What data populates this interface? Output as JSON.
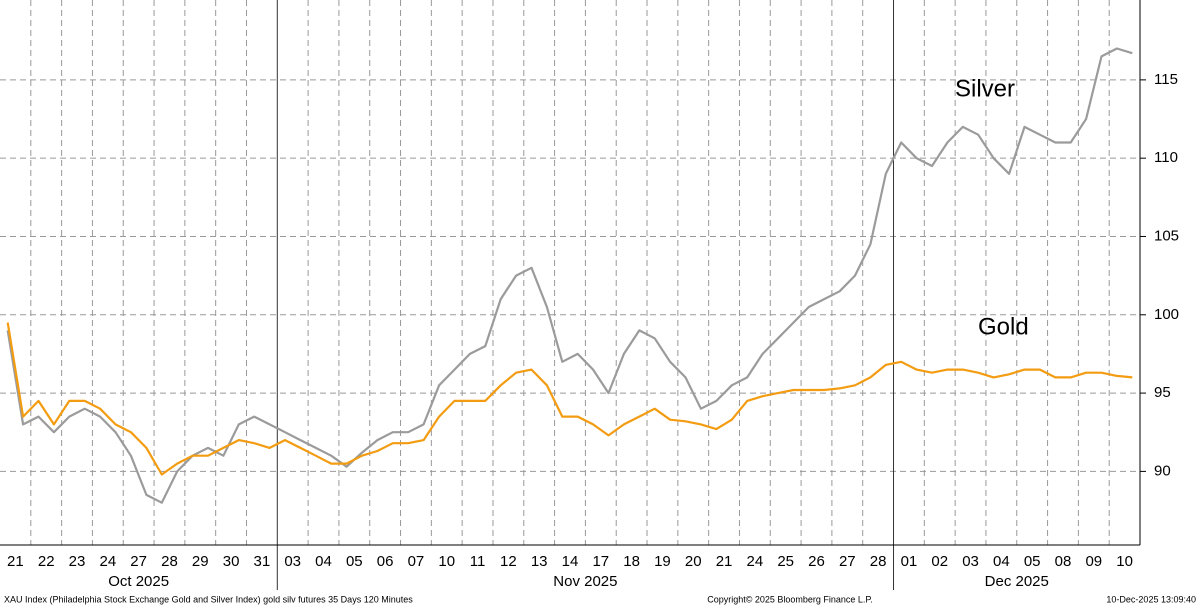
{
  "chart_data": {
    "type": "line",
    "source": "XAU Index (Philadelphia Stock Exchange Gold and Silver Index) gold silv futures 35 Days 120 Minutes",
    "copyright": "Copyright© 2025 Bloomberg Finance L.P.",
    "timestamp": "10-Dec-2025 13:09:40",
    "months": [
      "Oct 2025",
      "Nov 2025",
      "Dec 2025"
    ],
    "categories": [
      "21",
      null,
      "22",
      null,
      "23",
      null,
      "24",
      null,
      "27",
      null,
      "28",
      null,
      "29",
      null,
      "30",
      null,
      "31",
      null,
      "03",
      null,
      "04",
      null,
      "05",
      null,
      "06",
      null,
      "07",
      null,
      "10",
      null,
      "11",
      null,
      "12",
      null,
      "13",
      null,
      "14",
      null,
      "17",
      null,
      "18",
      null,
      "19",
      null,
      "20",
      null,
      "21",
      null,
      "24",
      null,
      "25",
      null,
      "26",
      null,
      "27",
      null,
      "28",
      null,
      "01",
      null,
      "02",
      null,
      "03",
      null,
      "04",
      null,
      "05",
      null,
      "08",
      null,
      "09",
      null,
      "10",
      null
    ],
    "series": [
      {
        "name": "Silver",
        "color": "#9b9b9b",
        "values": [
          99,
          93,
          93.5,
          92.5,
          93.5,
          94,
          93.5,
          92.5,
          91,
          88.5,
          88,
          90,
          91,
          91.5,
          91,
          93,
          93.5,
          93,
          92.5,
          92,
          91.5,
          91,
          90.3,
          91.2,
          92,
          92.5,
          92.5,
          93,
          95.5,
          96.5,
          97.5,
          98,
          101,
          102.5,
          103,
          100.5,
          97,
          97.5,
          96.5,
          95,
          97.5,
          99,
          98.5,
          97,
          96,
          94,
          94.5,
          95.5,
          96,
          97.5,
          98.5,
          99.5,
          100.5,
          101,
          101.5,
          102.5,
          104.5,
          109,
          111,
          110,
          109.5,
          111,
          112,
          111.5,
          110,
          109,
          112,
          111.5,
          111,
          111,
          112.5,
          116.5,
          117,
          116.7
        ]
      },
      {
        "name": "Gold",
        "color": "#f39c12",
        "values": [
          99.5,
          93.5,
          94.5,
          93,
          94.5,
          94.5,
          94,
          93,
          92.5,
          91.5,
          89.8,
          90.5,
          91,
          91,
          91.5,
          92,
          91.8,
          91.5,
          92,
          91.5,
          91,
          90.5,
          90.5,
          91,
          91.3,
          91.8,
          91.8,
          92,
          93.5,
          94.5,
          94.5,
          94.5,
          95.5,
          96.3,
          96.5,
          95.5,
          93.5,
          93.5,
          93,
          92.3,
          93,
          93.5,
          94,
          93.3,
          93.2,
          93,
          92.7,
          93.3,
          94.5,
          94.8,
          95,
          95.2,
          95.2,
          95.2,
          95.3,
          95.5,
          96,
          96.8,
          97,
          96.5,
          96.3,
          96.5,
          96.5,
          96.3,
          96,
          96.2,
          96.5,
          96.5,
          96,
          96,
          96.3,
          96.3,
          96.1,
          96
        ]
      }
    ],
    "ylim": [
      85.3,
      120.1
    ],
    "yticks": [
      90,
      95,
      100,
      105,
      110,
      115
    ],
    "grid": true
  }
}
